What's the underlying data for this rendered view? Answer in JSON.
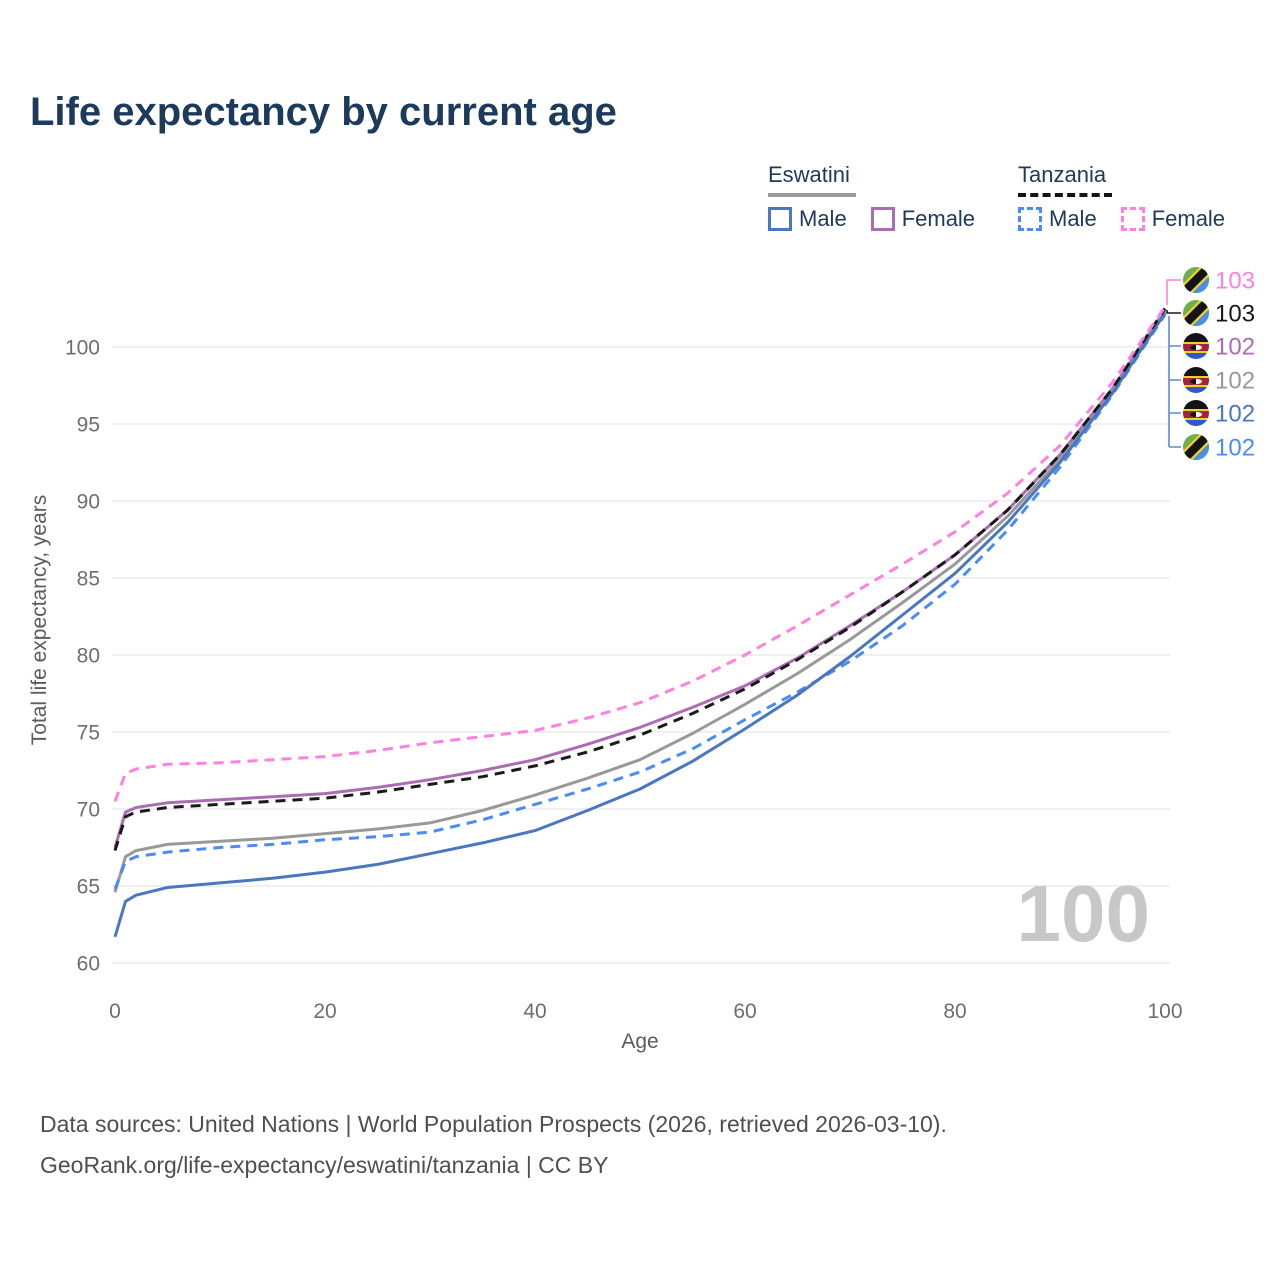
{
  "title": "Life expectancy by current age",
  "legend": {
    "groups": [
      {
        "name": "Eswatini",
        "line_style": "solid",
        "underline_color": "#9a9a9a",
        "items": [
          {
            "label": "Male",
            "color": "#4a77c0",
            "dashed": false
          },
          {
            "label": "Female",
            "color": "#ab6cb3",
            "dashed": false
          }
        ]
      },
      {
        "name": "Tanzania",
        "line_style": "dashed",
        "underline_color": "#141414",
        "items": [
          {
            "label": "Male",
            "color": "#4a8cf7",
            "dashed": true
          },
          {
            "label": "Female",
            "color": "#ff80df",
            "dashed": true
          }
        ]
      }
    ]
  },
  "chart_data": {
    "type": "line",
    "title": "Life expectancy by current age",
    "xlabel": "Age",
    "ylabel": "Total life expectancy, years",
    "xlim": [
      0,
      100
    ],
    "ylim": [
      60,
      100
    ],
    "x_ticks": [
      0,
      20,
      40,
      60,
      80,
      100
    ],
    "y_ticks": [
      60,
      65,
      70,
      75,
      80,
      85,
      90,
      95,
      100
    ],
    "grid": "horizontal-only",
    "legend_position": "top-right",
    "watermark": "100",
    "ages": [
      0,
      1,
      2,
      5,
      10,
      15,
      20,
      25,
      30,
      35,
      40,
      45,
      50,
      55,
      60,
      65,
      70,
      75,
      80,
      85,
      90,
      95,
      100
    ],
    "series": [
      {
        "id": "es_female",
        "name": "Eswatini Female",
        "country": "Eswatini",
        "sex": "Female",
        "color": "#ab6cb3",
        "dashed": false,
        "values": [
          67.5,
          69.8,
          70.1,
          70.4,
          70.6,
          70.8,
          71.0,
          71.4,
          71.9,
          72.5,
          73.2,
          74.2,
          75.3,
          76.6,
          78.0,
          79.8,
          81.9,
          84.1,
          86.5,
          89.4,
          93.0,
          97.3,
          102.4
        ]
      },
      {
        "id": "es_both",
        "name": "Eswatini Both sexes",
        "country": "Eswatini",
        "sex": "Both",
        "color": "#999999",
        "dashed": false,
        "values": [
          64.6,
          66.9,
          67.3,
          67.7,
          67.9,
          68.1,
          68.4,
          68.7,
          69.1,
          69.9,
          70.9,
          72.0,
          73.2,
          74.9,
          76.8,
          78.8,
          81.0,
          83.4,
          85.9,
          89.0,
          92.7,
          97.1,
          102.3
        ]
      },
      {
        "id": "tz_male",
        "name": "Tanzania Male",
        "country": "Tanzania",
        "sex": "Male",
        "color": "#4a8cf7",
        "dashed": true,
        "values": [
          64.8,
          66.6,
          66.9,
          67.2,
          67.5,
          67.7,
          68.0,
          68.2,
          68.5,
          69.3,
          70.3,
          71.3,
          72.4,
          73.9,
          75.8,
          77.6,
          79.6,
          81.9,
          84.6,
          88.1,
          92.2,
          96.9,
          102.1
        ]
      },
      {
        "id": "es_male",
        "name": "Eswatini Male",
        "country": "Eswatini",
        "sex": "Male",
        "color": "#4a77c0",
        "dashed": false,
        "values": [
          61.7,
          64.0,
          64.4,
          64.9,
          65.2,
          65.5,
          65.9,
          66.4,
          67.1,
          67.8,
          68.6,
          69.9,
          71.3,
          73.1,
          75.2,
          77.4,
          79.9,
          82.6,
          85.3,
          88.6,
          92.5,
          97.0,
          102.2
        ]
      },
      {
        "id": "tz_both",
        "name": "Tanzania Both sexes",
        "country": "Tanzania",
        "sex": "Both",
        "color": "#1a1a1a",
        "dashed": true,
        "values": [
          67.3,
          69.5,
          69.8,
          70.1,
          70.3,
          70.5,
          70.7,
          71.1,
          71.6,
          72.1,
          72.8,
          73.7,
          74.8,
          76.2,
          77.8,
          79.7,
          81.8,
          84.1,
          86.5,
          89.4,
          93.0,
          97.3,
          102.5
        ]
      },
      {
        "id": "tz_female",
        "name": "Tanzania Female",
        "country": "Tanzania",
        "sex": "Female",
        "color": "#ff80df",
        "dashed": true,
        "values": [
          70.5,
          72.3,
          72.6,
          72.9,
          73.0,
          73.2,
          73.4,
          73.8,
          74.3,
          74.7,
          75.1,
          75.9,
          76.9,
          78.3,
          80.0,
          81.9,
          83.9,
          85.9,
          88.0,
          90.5,
          93.6,
          97.7,
          102.6
        ]
      }
    ],
    "end_labels": [
      {
        "flag": "tanzania",
        "value": "103",
        "color": "#ff80df",
        "series": "tz_female"
      },
      {
        "flag": "tanzania",
        "value": "103",
        "color": "#1a1a1a",
        "series": "tz_both"
      },
      {
        "flag": "eswatini",
        "value": "102",
        "color": "#ab6cb3",
        "series": "es_female"
      },
      {
        "flag": "eswatini",
        "value": "102",
        "color": "#999999",
        "series": "es_both"
      },
      {
        "flag": "eswatini",
        "value": "102",
        "color": "#4a77c0",
        "series": "es_male"
      },
      {
        "flag": "tanzania",
        "value": "102",
        "color": "#4a8cf7",
        "series": "tz_male"
      }
    ],
    "bracket_color": "#5f87d7"
  },
  "icons": {
    "tanzania_flag": {
      "green": "#6fae4d",
      "blue": "#4b8fe2",
      "yellow": "#f2cf2a",
      "black": "#141414"
    },
    "eswatini_flag": {
      "black": "#141414",
      "yellow": "#f2cf2a",
      "crimson": "#a3233a",
      "blue": "#3158c9",
      "white": "#f5f5f5"
    }
  },
  "colors": {
    "title_text": "#1c3a5c",
    "legend_text": "#21395a",
    "tick_text": "#6e6e6e",
    "axis_title_text": "#5c5c5c",
    "gridline": "#e8e8e8",
    "watermark": "#c8c8c8",
    "footer_text": "#4f4f4f"
  },
  "footer": {
    "line1": "Data sources: United Nations | World Population Prospects (2026, retrieved 2026-03-10).",
    "line2": "GeoRank.org/life-expectancy/eswatini/tanzania | CC BY"
  }
}
